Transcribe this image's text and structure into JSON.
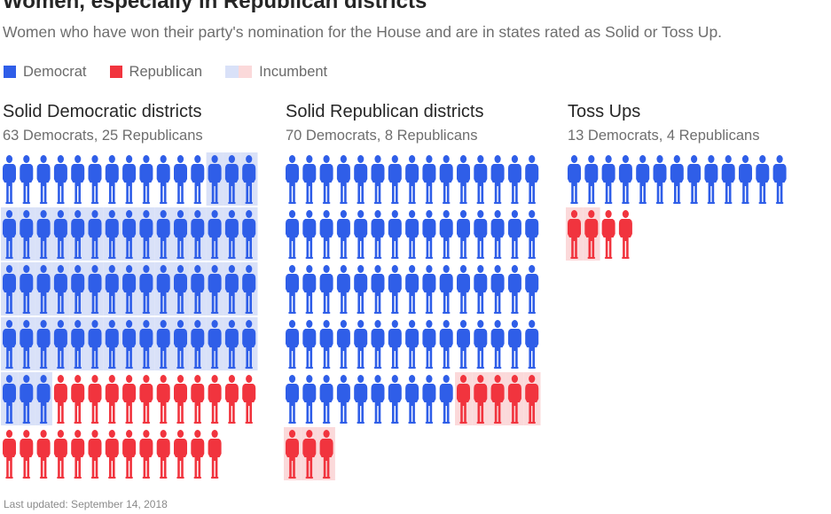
{
  "header": {
    "title": "Women, especially in Republican districts",
    "subtitle": "Women who have won their party's nomination for the House and are in states rated as Solid or Toss Up."
  },
  "legend": {
    "democrat_label": "Democrat",
    "republican_label": "Republican",
    "incumbent_label": "Incumbent"
  },
  "colors": {
    "democrat": "#2f5ee8",
    "republican": "#f1343e",
    "incumbent_democrat_bg": "#d9e1f8",
    "incumbent_republican_bg": "#fbd9da"
  },
  "icon": "woman-figure-icon",
  "chart_data": [
    {
      "type": "pictogram",
      "title": "Solid Democratic districts",
      "counts_label": "63 Democrats, 25 Republicans",
      "per_row": 15,
      "groups": [
        {
          "party": "Democrat",
          "incumbent": false,
          "count": 12
        },
        {
          "party": "Democrat",
          "incumbent": true,
          "count": 51
        },
        {
          "party": "Republican",
          "incumbent": false,
          "count": 25
        }
      ]
    },
    {
      "type": "pictogram",
      "title": "Solid Republican districts",
      "counts_label": "70 Democrats, 8 Republicans",
      "per_row": 15,
      "groups": [
        {
          "party": "Democrat",
          "incumbent": false,
          "count": 70
        },
        {
          "party": "Republican",
          "incumbent": true,
          "count": 8
        }
      ]
    },
    {
      "type": "pictogram",
      "title": "Toss Ups",
      "counts_label": "13 Democrats, 4 Republicans",
      "per_row": 13,
      "groups": [
        {
          "party": "Democrat",
          "incumbent": false,
          "count": 13
        },
        {
          "party": "Republican",
          "incumbent": true,
          "count": 2
        },
        {
          "party": "Republican",
          "incumbent": false,
          "count": 2
        }
      ]
    }
  ],
  "footer": {
    "updated": "Last updated: September 14, 2018"
  }
}
